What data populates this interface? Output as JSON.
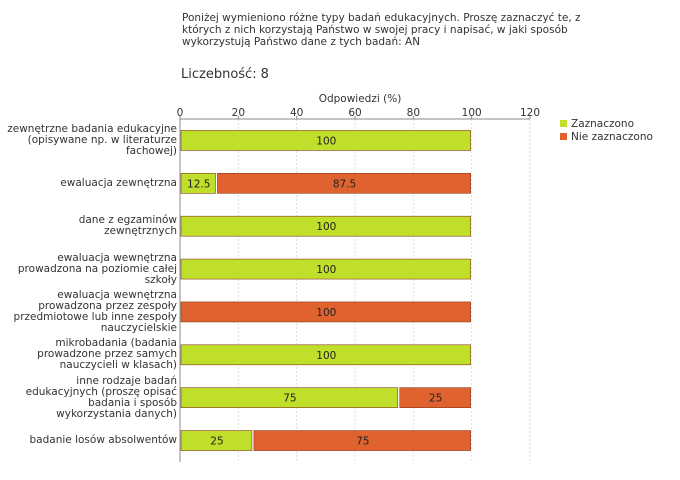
{
  "question": "Poniżej wymieniono różne typy badań edukacyjnych. Proszę zaznaczyć te, z których z nich korzystają Państwo w swojej pracy i napisać, w jaki sposób wykorzystują Państwo dane z tych badań:  AN",
  "count_label": "Liczebność:",
  "count_value": "8",
  "colors": {
    "zaznaczono": "#bfdf2a",
    "nie_zaznaczono": "#e0622e"
  },
  "chart_data": {
    "type": "bar",
    "orientation": "horizontal",
    "stacked": true,
    "title": "",
    "xlabel": "Odpowiedzi (%)",
    "ylabel": "",
    "xlim": [
      0,
      120
    ],
    "ticks": [
      0,
      20,
      40,
      60,
      80,
      100,
      120
    ],
    "grid": true,
    "legend_position": "right",
    "categories": [
      "zewnętrzne badania edukacyjne (opisywane np. w literaturze fachowej)",
      "ewaluacja zewnętrzna",
      "dane z egzaminów zewnętrznych",
      "ewaluacja wewnętrzna prowadzona na poziomie całej szkoły",
      "ewaluacja wewnętrzna prowadzona przez zespoły przedmiotowe lub inne zespoły nauczycielskie",
      "mikrobadania (badania prowadzone przez samych nauczycieli w klasach)",
      "inne rodzaje badań edukacyjnych (proszę opisać badania i sposób wykorzystania danych)",
      "badanie losów absolwentów"
    ],
    "series": [
      {
        "name": "Zaznaczono",
        "values": [
          100,
          12.5,
          100,
          100,
          0,
          100,
          75,
          25
        ]
      },
      {
        "name": "Nie zaznaczono",
        "values": [
          0,
          87.5,
          0,
          0,
          100,
          0,
          25,
          75
        ]
      }
    ]
  },
  "category_label_lines": [
    [
      "zewnętrzne badania edukacyjne",
      "(opisywane np. w literaturze",
      "fachowej)"
    ],
    [
      "ewaluacja zewnętrzna"
    ],
    [
      "dane z egzaminów",
      "zewnętrznych"
    ],
    [
      "ewaluacja wewnętrzna",
      "prowadzona na poziomie całej",
      "szkoły"
    ],
    [
      "ewaluacja wewnętrzna",
      "prowadzona przez zespoły",
      "przedmiotowe lub inne zespoły",
      "nauczycielskie"
    ],
    [
      "mikrobadania (badania",
      "prowadzone przez samych",
      "nauczycieli w klasach)"
    ],
    [
      "inne rodzaje badań",
      "edukacyjnych (proszę opisać",
      "badania i sposób",
      "wykorzystania danych)"
    ],
    [
      "badanie losów absolwentów"
    ]
  ]
}
